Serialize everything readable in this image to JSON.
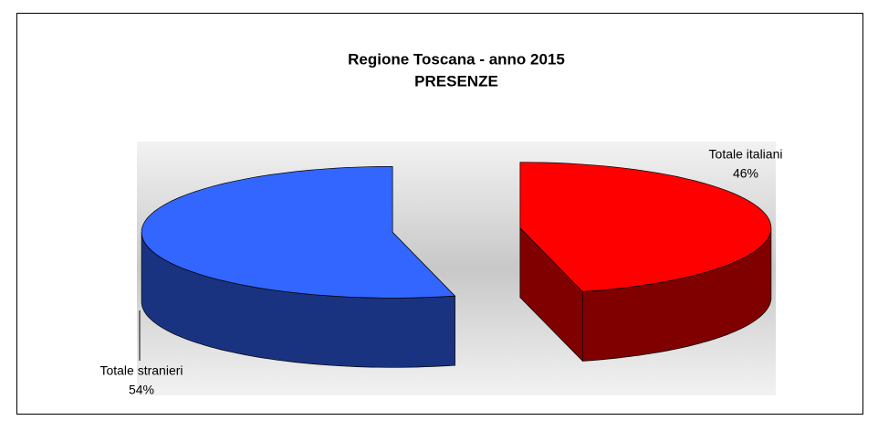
{
  "chart_data": {
    "type": "pie",
    "title": "Regione Toscana - anno 2015",
    "subtitle": "PRESENZE",
    "categories": [
      "Totale italiani",
      "Totale stranieri"
    ],
    "values": [
      46,
      54
    ],
    "value_labels": [
      "46%",
      "54%"
    ],
    "colors": [
      "#ff0000",
      "#3366ff"
    ]
  }
}
